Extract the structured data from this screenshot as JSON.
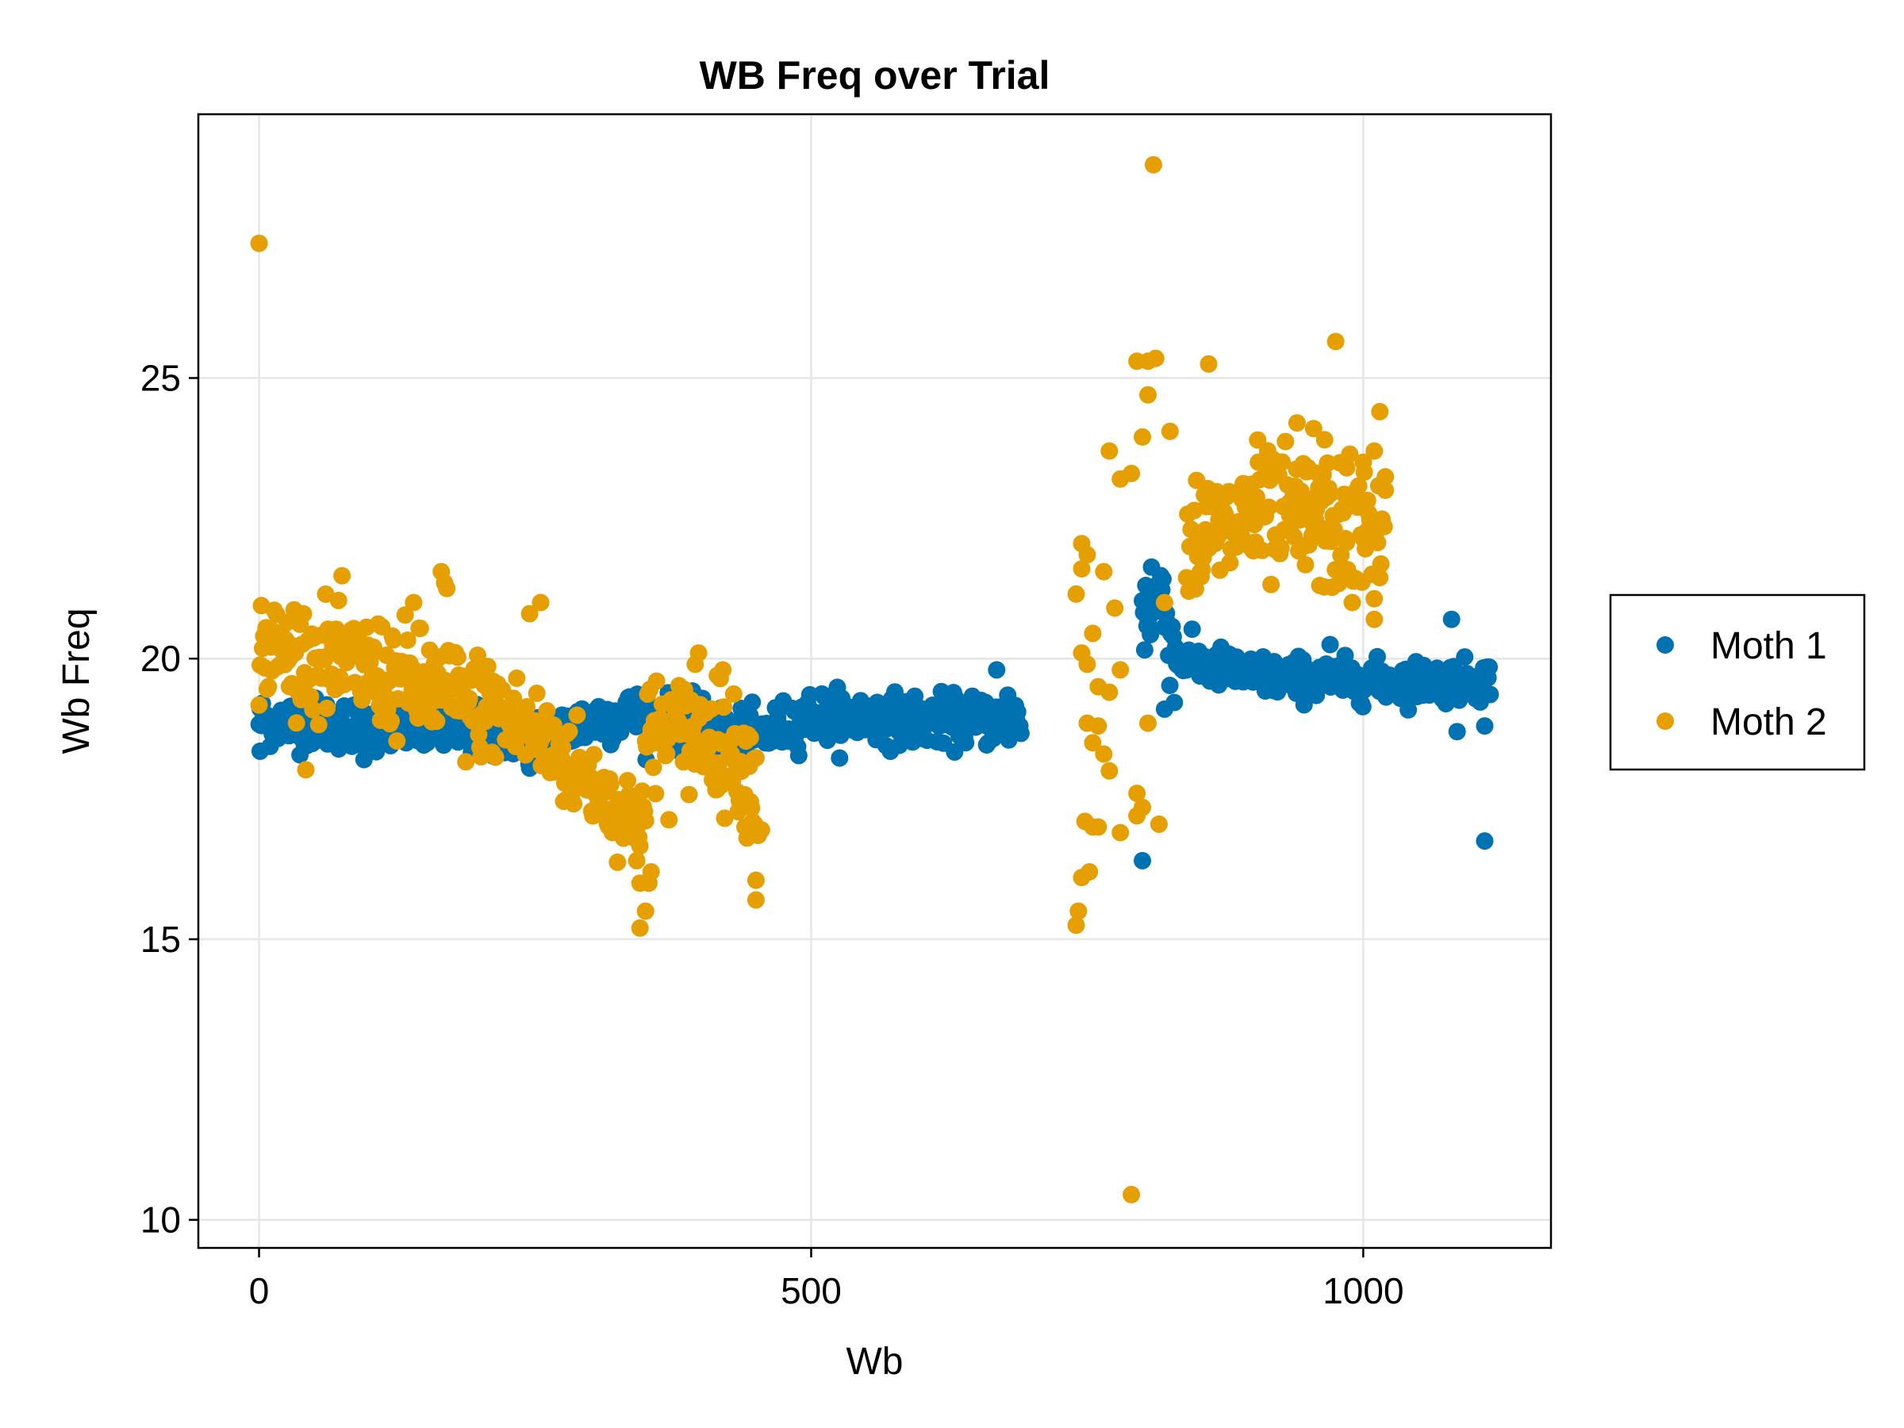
{
  "chart_data": {
    "type": "scatter",
    "title": "WB Freq over Trial",
    "xlabel": "Wb",
    "ylabel": "Wb Freq",
    "xlim": [
      -55,
      1170
    ],
    "ylim": [
      9.5,
      29.7
    ],
    "xticks": [
      0,
      500,
      1000
    ],
    "yticks": [
      10,
      15,
      20,
      25
    ],
    "grid": true,
    "legend_position": "right",
    "series": [
      {
        "name": "Moth 1",
        "color": "#0072B2",
        "segments": [
          {
            "x0": 0,
            "x1": 690,
            "anchors": [
              [
                0,
                18.9
              ],
              [
                100,
                18.8
              ],
              [
                200,
                18.7
              ],
              [
                260,
                18.6
              ],
              [
                300,
                18.9
              ],
              [
                340,
                19.0
              ],
              [
                400,
                18.8
              ],
              [
                450,
                18.6
              ],
              [
                500,
                19.0
              ],
              [
                600,
                18.9
              ],
              [
                690,
                18.9
              ]
            ],
            "count": 690,
            "jitter": 0.22
          },
          {
            "x0": 800,
            "x1": 830,
            "anchors": [
              [
                800,
                20.8
              ],
              [
                815,
                21.2
              ],
              [
                830,
                20.2
              ]
            ],
            "count": 30,
            "jitter": 0.5
          },
          {
            "x0": 830,
            "x1": 1115,
            "anchors": [
              [
                830,
                20.0
              ],
              [
                900,
                19.7
              ],
              [
                1000,
                19.6
              ],
              [
                1115,
                19.6
              ]
            ],
            "count": 285,
            "jitter": 0.18
          }
        ],
        "outliers": [
          [
            1,
            18.35
          ],
          [
            668,
            19.8
          ],
          [
            678,
            19.35
          ],
          [
            800,
            16.4
          ],
          [
            1110,
            16.75
          ],
          [
            1085,
            18.7
          ],
          [
            1110,
            18.8
          ],
          [
            1080,
            20.7
          ],
          [
            970,
            20.25
          ],
          [
            245,
            18.05
          ],
          [
            95,
            18.2
          ],
          [
            820,
            19.1
          ],
          [
            665,
            18.6
          ]
        ]
      },
      {
        "name": "Moth 2",
        "color": "#E69F00",
        "segments": [
          {
            "x0": 0,
            "x1": 200,
            "anchors": [
              [
                0,
                20.2
              ],
              [
                50,
                20.0
              ],
              [
                100,
                19.8
              ],
              [
                150,
                19.5
              ],
              [
                200,
                19.1
              ]
            ],
            "count": 190,
            "jitter": 0.5
          },
          {
            "x0": 200,
            "x1": 290,
            "anchors": [
              [
                200,
                19.2
              ],
              [
                240,
                18.8
              ],
              [
                290,
                18.0
              ]
            ],
            "count": 90,
            "jitter": 0.45
          },
          {
            "x0": 290,
            "x1": 350,
            "anchors": [
              [
                290,
                18.0
              ],
              [
                320,
                17.4
              ],
              [
                350,
                17.2
              ]
            ],
            "count": 60,
            "jitter": 0.35
          },
          {
            "x0": 350,
            "x1": 450,
            "anchors": [
              [
                350,
                18.5
              ],
              [
                400,
                18.7
              ],
              [
                450,
                18.0
              ]
            ],
            "count": 100,
            "jitter": 0.5
          },
          {
            "x0": 840,
            "x1": 1020,
            "anchors": [
              [
                840,
                22.0
              ],
              [
                900,
                22.5
              ],
              [
                960,
                22.4
              ],
              [
                1020,
                22.2
              ]
            ],
            "count": 180,
            "jitter": 0.6
          }
        ],
        "outliers": [
          [
            0,
            27.4
          ],
          [
            810,
            28.8
          ],
          [
            975,
            25.65
          ],
          [
            860,
            25.25
          ],
          [
            795,
            25.3
          ],
          [
            805,
            25.3
          ],
          [
            812,
            25.35
          ],
          [
            1015,
            24.4
          ],
          [
            805,
            24.7
          ],
          [
            825,
            24.05
          ],
          [
            940,
            24.2
          ],
          [
            955,
            24.1
          ],
          [
            965,
            23.9
          ],
          [
            770,
            23.7
          ],
          [
            800,
            23.95
          ],
          [
            780,
            23.2
          ],
          [
            790,
            23.3
          ],
          [
            745,
            22.05
          ],
          [
            750,
            21.85
          ],
          [
            745,
            21.6
          ],
          [
            740,
            21.15
          ],
          [
            765,
            21.55
          ],
          [
            775,
            20.9
          ],
          [
            760,
            19.5
          ],
          [
            755,
            20.45
          ],
          [
            750,
            19.9
          ],
          [
            745,
            20.1
          ],
          [
            760,
            18.8
          ],
          [
            750,
            18.85
          ],
          [
            755,
            18.5
          ],
          [
            765,
            18.3
          ],
          [
            770,
            18.0
          ],
          [
            748,
            17.1
          ],
          [
            755,
            17.0
          ],
          [
            760,
            17.0
          ],
          [
            745,
            16.1
          ],
          [
            752,
            16.2
          ],
          [
            742,
            15.5
          ],
          [
            740,
            15.25
          ],
          [
            780,
            16.9
          ],
          [
            795,
            17.2
          ],
          [
            800,
            17.35
          ],
          [
            795,
            17.6
          ],
          [
            790,
            10.45
          ],
          [
            815,
            17.05
          ],
          [
            805,
            18.85
          ],
          [
            820,
            21.0
          ],
          [
            770,
            19.4
          ],
          [
            780,
            19.8
          ],
          [
            345,
            15.2
          ],
          [
            350,
            15.5
          ],
          [
            345,
            16.0
          ],
          [
            353,
            16.0
          ],
          [
            355,
            16.2
          ],
          [
            342,
            16.4
          ],
          [
            340,
            16.8
          ],
          [
            450,
            15.7
          ],
          [
            450,
            16.05
          ],
          [
            452,
            16.85
          ],
          [
            455,
            16.95
          ],
          [
            440,
            17.0
          ],
          [
            445,
            17.45
          ],
          [
            330,
            16.8
          ],
          [
            320,
            16.9
          ],
          [
            165,
            21.55
          ],
          [
            168,
            21.35
          ],
          [
            170,
            21.25
          ],
          [
            140,
            21.0
          ],
          [
            255,
            21.0
          ],
          [
            245,
            20.8
          ],
          [
            360,
            19.6
          ],
          [
            395,
            19.9
          ],
          [
            398,
            20.1
          ],
          [
            415,
            19.7
          ],
          [
            420,
            19.8
          ],
          [
            1010,
            20.7
          ],
          [
            990,
            21.0
          ],
          [
            1020,
            23.0
          ],
          [
            1010,
            23.7
          ],
          [
            1000,
            23.5
          ],
          [
            985,
            23.4
          ],
          [
            950,
            23.4
          ],
          [
            905,
            23.5
          ]
        ]
      }
    ]
  }
}
